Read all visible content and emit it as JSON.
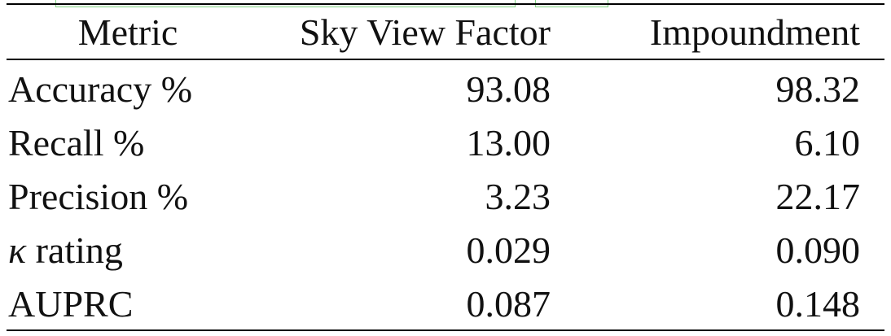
{
  "table": {
    "headers": [
      "Metric",
      "Sky View Factor",
      "Impoundment"
    ],
    "rows": [
      {
        "metric": "Accuracy %",
        "sky_view_factor": "93.08",
        "impoundment": "98.32"
      },
      {
        "metric": "Recall %",
        "sky_view_factor": "13.00",
        "impoundment": "6.10"
      },
      {
        "metric": "Precision %",
        "sky_view_factor": "3.23",
        "impoundment": "22.17"
      },
      {
        "metric_symbol": "κ",
        "metric": "rating",
        "sky_view_factor": "0.029",
        "impoundment": "0.090"
      },
      {
        "metric": "AUPRC",
        "sky_view_factor": "0.087",
        "impoundment": "0.148"
      }
    ]
  }
}
